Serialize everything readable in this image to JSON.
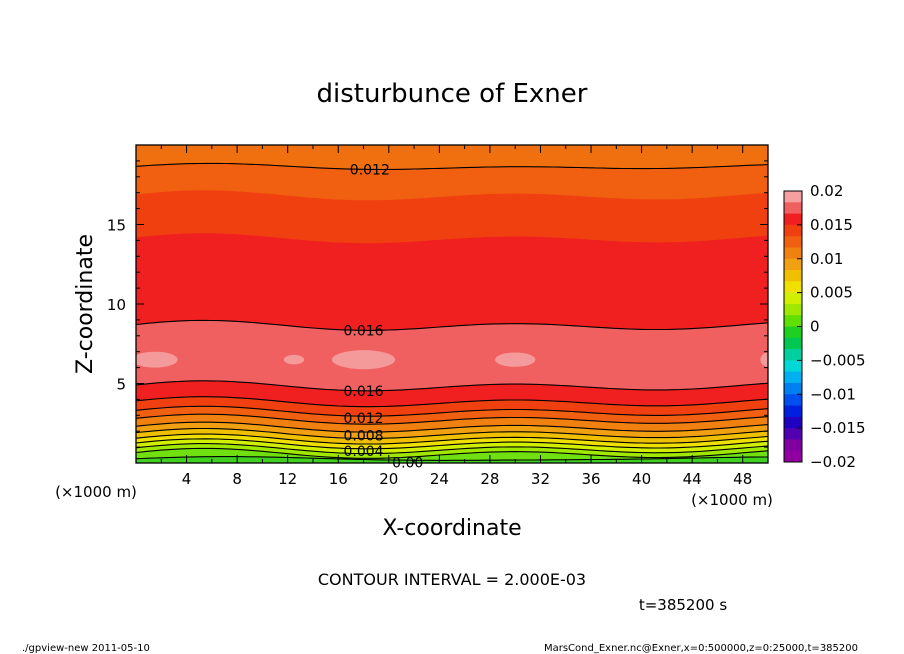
{
  "chart_data": {
    "type": "contour",
    "title": "disturbunce of Exner",
    "xlabel": "X-coordinate",
    "ylabel": "Z-coordinate",
    "x_unit": "(×1000 m)",
    "y_unit": "(×1000 m)",
    "xlim": [
      0,
      50
    ],
    "ylim": [
      0,
      20
    ],
    "x_ticks": [
      4,
      8,
      12,
      16,
      20,
      24,
      28,
      32,
      36,
      40,
      44,
      48
    ],
    "y_ticks": [
      5,
      10,
      15
    ],
    "contour_interval_text": "CONTOUR INTERVAL = 2.000E-03",
    "time_text": "t=385200 s",
    "contour_labels": [
      {
        "text": "0.012",
        "x": 18.5,
        "z": 18.6
      },
      {
        "text": "0.016",
        "x": 18.0,
        "z": 8.6
      },
      {
        "text": "0.016",
        "x": 18.0,
        "z": 4.8
      },
      {
        "text": "0.012",
        "x": 18.0,
        "z": 3.1
      },
      {
        "text": "0.008",
        "x": 18.0,
        "z": 2.0
      },
      {
        "text": "0.004",
        "x": 18.0,
        "z": 1.0
      },
      {
        "text": "0.00",
        "x": 21.5,
        "z": 0.1
      }
    ],
    "colorbar": {
      "ticks": [
        "0.02",
        "0.015",
        "0.01",
        "0.005",
        "0",
        "−0.005",
        "−0.01",
        "−0.015",
        "−0.02"
      ],
      "range": [
        -0.02,
        0.02
      ],
      "colors": [
        "#f5a0a0",
        "#f06060",
        "#f02020",
        "#f04010",
        "#f06010",
        "#f08010",
        "#f0a010",
        "#f0c000",
        "#f0e000",
        "#d0f000",
        "#a0e800",
        "#60e000",
        "#20d020",
        "#00c850",
        "#00d0a0",
        "#00d8d8",
        "#00b0f0",
        "#0080f0",
        "#0050f0",
        "#0020e0",
        "#2000c0",
        "#5000b0",
        "#8000a0",
        "#9000a0"
      ]
    },
    "bands": [
      {
        "lo": 0.0,
        "hi": 0.25,
        "color": "#40d020"
      },
      {
        "lo": 0.25,
        "hi": 0.55,
        "color": "#70e010"
      },
      {
        "lo": 0.55,
        "hi": 0.85,
        "color": "#a0e800"
      },
      {
        "lo": 0.85,
        "hi": 1.15,
        "color": "#d0f000"
      },
      {
        "lo": 1.15,
        "hi": 1.45,
        "color": "#f0e000"
      },
      {
        "lo": 1.45,
        "hi": 1.8,
        "color": "#f0c000"
      },
      {
        "lo": 1.8,
        "hi": 2.2,
        "color": "#f0a010"
      },
      {
        "lo": 2.2,
        "hi": 2.7,
        "color": "#f08010"
      },
      {
        "lo": 2.7,
        "hi": 3.2,
        "color": "#f06010"
      },
      {
        "lo": 3.2,
        "hi": 3.8,
        "color": "#f04010"
      },
      {
        "lo": 3.8,
        "hi": 4.8,
        "color": "#f02020"
      },
      {
        "lo": 4.8,
        "hi": 8.6,
        "color": "#f06060"
      },
      {
        "lo": 8.6,
        "hi": 14.1,
        "color": "#f02020"
      },
      {
        "lo": 14.1,
        "hi": 16.8,
        "color": "#f04010"
      },
      {
        "lo": 16.8,
        "hi": 18.6,
        "color": "#f06010"
      },
      {
        "lo": 18.6,
        "hi": 20.0,
        "color": "#f07010"
      }
    ],
    "contour_levels_z": [
      0.25,
      0.55,
      0.85,
      1.15,
      1.45,
      1.8,
      2.2,
      2.7,
      3.2,
      3.8,
      4.8,
      8.6,
      18.6
    ],
    "highlight_blobs": [
      {
        "x": 1.5,
        "z": 6.5,
        "rx": 1.8,
        "rz": 0.5
      },
      {
        "x": 12.5,
        "z": 6.5,
        "rx": 0.8,
        "rz": 0.3
      },
      {
        "x": 18.0,
        "z": 6.5,
        "rx": 2.5,
        "rz": 0.6
      },
      {
        "x": 30.0,
        "z": 6.5,
        "rx": 1.6,
        "rz": 0.45
      },
      {
        "x": 50.0,
        "z": 6.5,
        "rx": 0.6,
        "rz": 0.45
      }
    ]
  },
  "footer": {
    "left": "./gpview-new   2011-05-10",
    "right": "MarsCond_Exner.nc@Exner,x=0:500000,z=0:25000,t=385200"
  }
}
